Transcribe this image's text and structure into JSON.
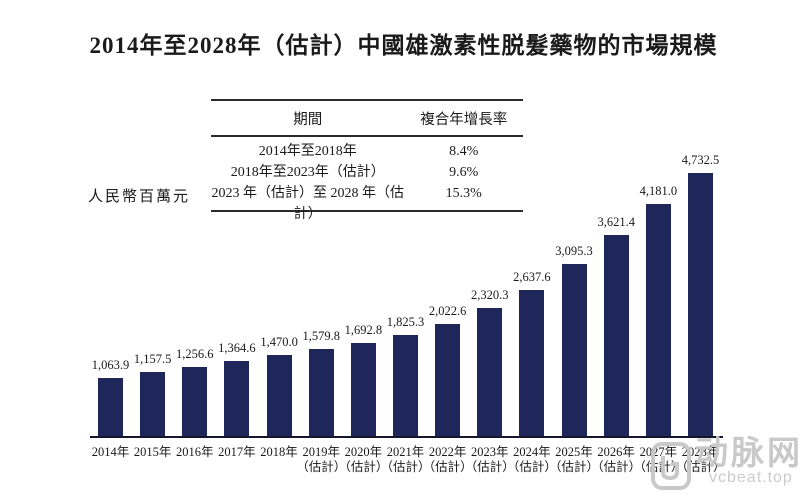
{
  "page": {
    "title": "2014年至2028年（估計）中國雄激素性脱髮藥物的市場規模"
  },
  "cagr_table": {
    "col_period": "期間",
    "col_cagr": "複合年增長率",
    "rows": [
      {
        "period": "2014年至2018年",
        "cagr": "8.4%"
      },
      {
        "period": "2018年至2023年（估計）",
        "cagr": "9.6%"
      },
      {
        "period": "2023 年（估計）至 2028 年（估計）",
        "cagr": "15.3%"
      }
    ]
  },
  "chart_data": {
    "type": "bar",
    "title": "2014年至2028年（估計）中國雄激素性脱髮藥物的市場規模",
    "ylabel": "人民幣百萬元",
    "xlabel": "",
    "categories": [
      "2014年",
      "2015年",
      "2016年",
      "2017年",
      "2018年",
      "2019年（估計）",
      "2020年（估計）",
      "2021年（估計）",
      "2022年（估計）",
      "2023年（估計）",
      "2024年（估計）",
      "2025年（估計）",
      "2026年（估計）",
      "2027年（估計）",
      "2028年（估計）"
    ],
    "values": [
      1063.9,
      1157.5,
      1256.6,
      1364.6,
      1470.0,
      1579.8,
      1692.8,
      1825.3,
      2022.6,
      2320.3,
      2637.6,
      3095.3,
      3621.4,
      4181.0,
      4732.5
    ],
    "value_labels": [
      "1,063.9",
      "1,157.5",
      "1,256.6",
      "1,364.6",
      "1,470.0",
      "1,579.8",
      "1,692.8",
      "1,825.3",
      "2,022.6",
      "2,320.3",
      "2,637.6",
      "3,095.3",
      "3,621.4",
      "4,181.0",
      "4,732.5"
    ],
    "ylim": [
      0,
      4732.5
    ],
    "grid": false,
    "legend": false,
    "bar_color": "#1e265a",
    "axis_color": "#15152e"
  },
  "watermark": {
    "brand": "动脉网",
    "domain": "vcbeat.top"
  }
}
